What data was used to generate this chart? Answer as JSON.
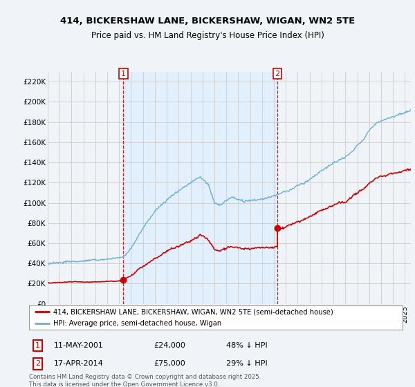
{
  "title1": "414, BICKERSHAW LANE, BICKERSHAW, WIGAN, WN2 5TE",
  "title2": "Price paid vs. HM Land Registry's House Price Index (HPI)",
  "legend_line1": "414, BICKERSHAW LANE, BICKERSHAW, WIGAN, WN2 5TE (semi-detached house)",
  "legend_line2": "HPI: Average price, semi-detached house, Wigan",
  "annotation1_label": "1",
  "annotation1_date": "11-MAY-2001",
  "annotation1_price": "£24,000",
  "annotation1_hpi": "48% ↓ HPI",
  "annotation2_label": "2",
  "annotation2_date": "17-APR-2014",
  "annotation2_price": "£75,000",
  "annotation2_hpi": "29% ↓ HPI",
  "footer": "Contains HM Land Registry data © Crown copyright and database right 2025.\nThis data is licensed under the Open Government Licence v3.0.",
  "sale1_year": 2001.36,
  "sale1_price": 24000,
  "sale2_year": 2014.29,
  "sale2_price": 75000,
  "hpi_color": "#6baed6",
  "price_color": "#cc0000",
  "shade_color": "#ddeeff",
  "background_color": "#f0f4f8",
  "chart_bg": "#f0f4f8",
  "grid_color": "#cccccc",
  "ylim": [
    0,
    230000
  ],
  "xlim_start": 1995,
  "xlim_end": 2025.5
}
